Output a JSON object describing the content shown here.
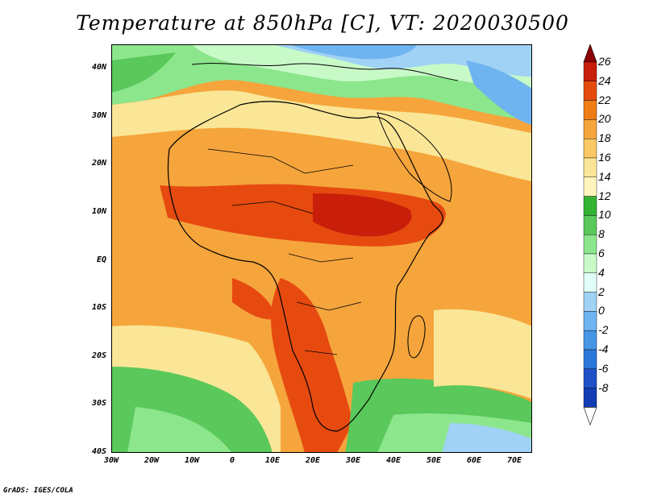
{
  "title": "Temperature at 850hPa [C], VT: 2020030500",
  "credit": "GrADS: IGES/COLA",
  "lat_labels": [
    "40N",
    "30N",
    "20N",
    "10N",
    "EQ",
    "10S",
    "20S",
    "30S",
    "40S"
  ],
  "lon_labels": [
    "30W",
    "20W",
    "10W",
    "0",
    "10E",
    "20E",
    "30E",
    "40E",
    "50E",
    "60E",
    "70E"
  ],
  "colorbar": {
    "labels": [
      "26",
      "24",
      "22",
      "20",
      "18",
      "16",
      "14",
      "12",
      "10",
      "8",
      "6",
      "4",
      "2",
      "0",
      "-2",
      "-4",
      "-6",
      "-8"
    ],
    "colors": [
      "#8b0000",
      "#c81e0a",
      "#e64a0f",
      "#f07d14",
      "#f5a53c",
      "#fac864",
      "#fae696",
      "#fff5bc",
      "#32b432",
      "#5ac85a",
      "#8ce68c",
      "#c8fac8",
      "#e0fff8",
      "#a0d2f5",
      "#6eb4f0",
      "#4696e6",
      "#2a78dc",
      "#1e50c8",
      "#123cb4",
      "#0a1e8c"
    ]
  }
}
